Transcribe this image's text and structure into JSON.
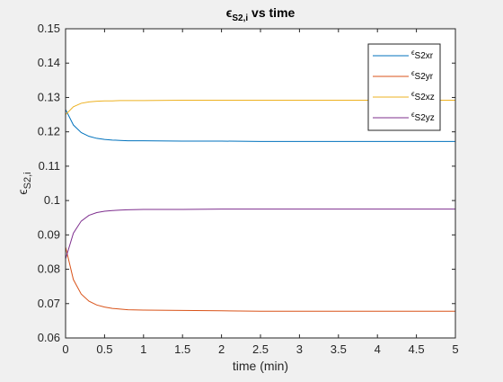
{
  "chart_data": {
    "type": "line",
    "title_symbol": "ϵ",
    "title_sub": "S2,i",
    "title_rest": " vs time",
    "xlabel": "time (min)",
    "ylabel_symbol": "ϵ",
    "ylabel_sub": "S2,i",
    "xlim": [
      0,
      5
    ],
    "ylim": [
      0.06,
      0.15
    ],
    "xticks": [
      0,
      0.5,
      1,
      1.5,
      2,
      2.5,
      3,
      3.5,
      4,
      4.5,
      5
    ],
    "xtick_labels": [
      "0",
      "0.5",
      "1",
      "1.5",
      "2",
      "2.5",
      "3",
      "3.5",
      "4",
      "4.5",
      "5"
    ],
    "yticks": [
      0.06,
      0.07,
      0.08,
      0.09,
      0.1,
      0.11,
      0.12,
      0.13,
      0.14,
      0.15
    ],
    "ytick_labels": [
      "0.06",
      "0.07",
      "0.08",
      "0.09",
      "0.1",
      "0.11",
      "0.12",
      "0.13",
      "0.14",
      "0.15"
    ],
    "grid": false,
    "legend_position": "top-right",
    "x": [
      0,
      0.1,
      0.2,
      0.3,
      0.4,
      0.5,
      0.6,
      0.7,
      0.8,
      1.0,
      1.5,
      2.0,
      2.5,
      3.0,
      3.5,
      4.0,
      4.5,
      5.0
    ],
    "series": [
      {
        "name_symbol": "ϵ",
        "name_sub": "S2xr",
        "color": "#0072BD",
        "values": [
          0.1265,
          0.122,
          0.1198,
          0.1187,
          0.1181,
          0.1178,
          0.1176,
          0.1175,
          0.1174,
          0.1174,
          0.1173,
          0.1173,
          0.1172,
          0.1172,
          0.1172,
          0.1172,
          0.1172,
          0.1172
        ]
      },
      {
        "name_symbol": "ϵ",
        "name_sub": "S2yr",
        "color": "#D95319",
        "values": [
          0.0865,
          0.077,
          0.0728,
          0.0707,
          0.0696,
          0.069,
          0.0686,
          0.0684,
          0.0682,
          0.0681,
          0.068,
          0.0679,
          0.0678,
          0.0678,
          0.0678,
          0.0678,
          0.0678,
          0.0678
        ]
      },
      {
        "name_symbol": "ϵ",
        "name_sub": "S2xz",
        "color": "#EDB120",
        "values": [
          0.125,
          0.1273,
          0.1283,
          0.1287,
          0.1289,
          0.129,
          0.129,
          0.1291,
          0.1291,
          0.1291,
          0.1292,
          0.1292,
          0.1292,
          0.1292,
          0.1292,
          0.1292,
          0.1292,
          0.1292
        ]
      },
      {
        "name_symbol": "ϵ",
        "name_sub": "S2yz",
        "color": "#7E2F8E",
        "values": [
          0.083,
          0.0905,
          0.094,
          0.0957,
          0.0965,
          0.0969,
          0.0971,
          0.0972,
          0.0973,
          0.0974,
          0.0974,
          0.0975,
          0.0975,
          0.0975,
          0.0975,
          0.0975,
          0.0975,
          0.0975
        ]
      }
    ]
  }
}
